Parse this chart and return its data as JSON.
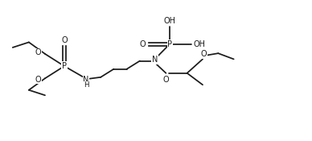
{
  "bg": "#ffffff",
  "lc": "#1a1a1a",
  "lw": 1.25,
  "fs": 7.0,
  "figw": 3.88,
  "figh": 1.75,
  "dpi": 100,
  "xlim": [
    0.0,
    10.0
  ],
  "ylim": [
    0.0,
    4.8
  ]
}
